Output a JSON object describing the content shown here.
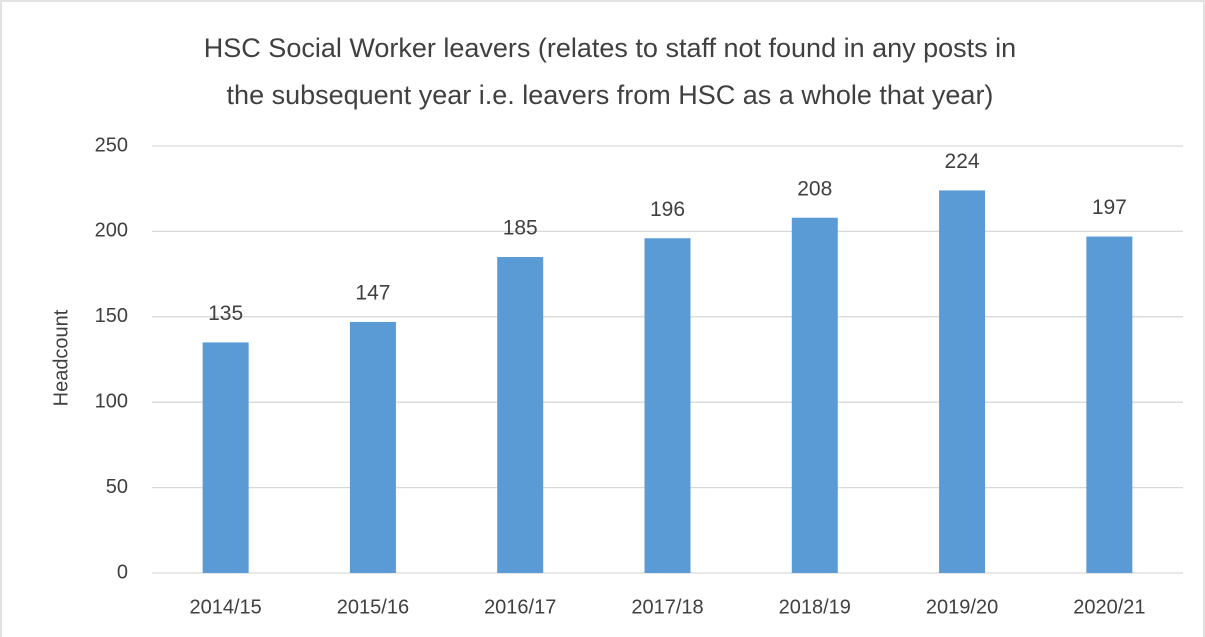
{
  "chart_data": {
    "type": "bar",
    "title": [
      "HSC Social Worker leavers (relates to staff not found in any posts in",
      "the subsequent year i.e. leavers from HSC as a whole that year)"
    ],
    "y_label": "Headcount",
    "categories": [
      "2014/15",
      "2015/16",
      "2016/17",
      "2017/18",
      "2018/19",
      "2019/20",
      "2020/21"
    ],
    "values": [
      135,
      147,
      185,
      196,
      208,
      224,
      197
    ],
    "color": "#5b9bd5",
    "ylim": [
      0,
      250
    ],
    "yticks": [
      0,
      50,
      100,
      150,
      200,
      250
    ],
    "grid": true
  }
}
